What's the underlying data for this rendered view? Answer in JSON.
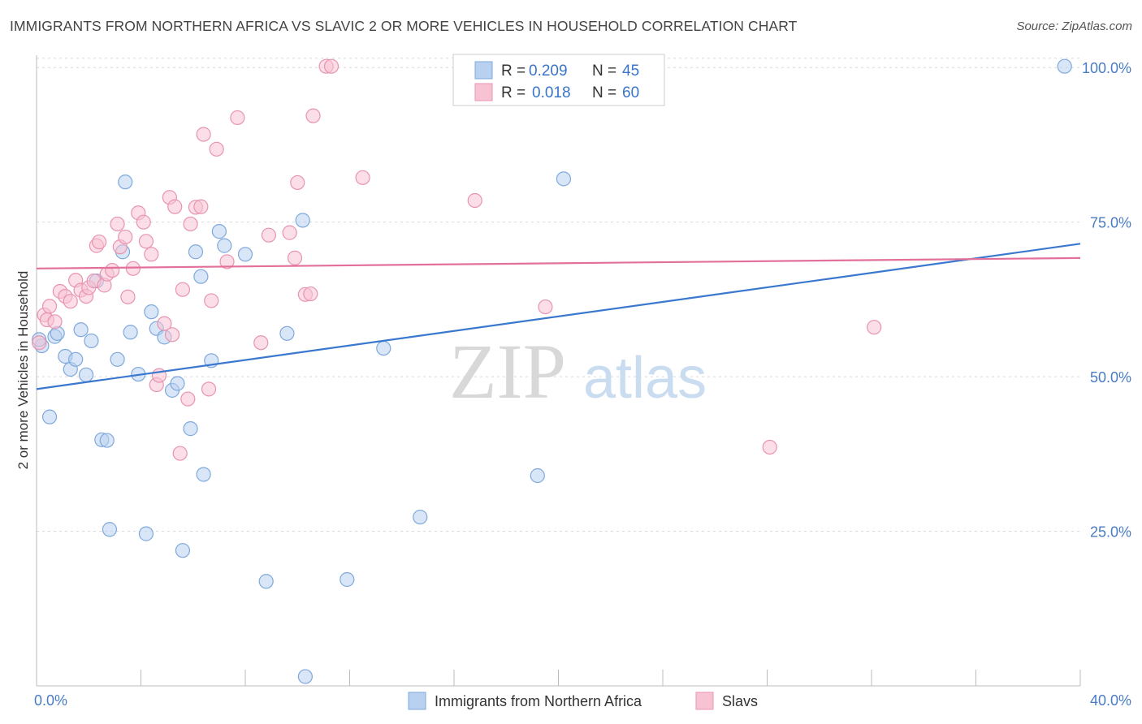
{
  "title": "IMMIGRANTS FROM NORTHERN AFRICA VS SLAVIC 2 OR MORE VEHICLES IN HOUSEHOLD CORRELATION CHART",
  "source": "Source: ZipAtlas.com",
  "watermark": {
    "part1": "ZIP",
    "part2": "atlas"
  },
  "legend_top": [
    {
      "r_label": "R =",
      "r_value": "0.209",
      "n_label": "N =",
      "n_value": "45"
    },
    {
      "r_label": "R =",
      "r_value": "0.018",
      "n_label": "N =",
      "n_value": "60"
    }
  ],
  "colors": {
    "blue_fill": "#b9d1f1",
    "blue_stroke": "#7fa8dc",
    "blue_line": "#3a78cf",
    "pink_fill": "#f7c3d3",
    "pink_stroke": "#e894b0",
    "pink_line": "#e2709a",
    "grid": "#d9d9d9",
    "axis": "#bbbbbb"
  },
  "chart_data": {
    "type": "scatter",
    "title": "IMMIGRANTS FROM NORTHERN AFRICA VS SLAVIC 2 OR MORE VEHICLES IN HOUSEHOLD CORRELATION CHART",
    "xlabel": "",
    "ylabel": "2 or more Vehicles in Household",
    "xlim": [
      0,
      40
    ],
    "ylim": [
      0,
      102
    ],
    "x_tick_labels": [
      "0.0%",
      "40.0%"
    ],
    "y_ticks": [
      25,
      50,
      75,
      100
    ],
    "y_tick_labels": [
      "25.0%",
      "50.0%",
      "75.0%",
      "100.0%"
    ],
    "grid": true,
    "legend_placement": "bottom",
    "series": [
      {
        "name": "Immigrants from Northern Africa",
        "color": "#b9d1f1",
        "trend": [
          [
            0,
            48.0
          ],
          [
            40,
            71.5
          ]
        ],
        "points": [
          [
            0.2,
            55.0
          ],
          [
            0.5,
            43.5
          ],
          [
            0.7,
            56.5
          ],
          [
            0.8,
            57.0
          ],
          [
            1.1,
            53.3
          ],
          [
            1.3,
            51.2
          ],
          [
            1.5,
            52.8
          ],
          [
            1.7,
            57.6
          ],
          [
            1.9,
            50.3
          ],
          [
            2.1,
            55.8
          ],
          [
            2.3,
            65.5
          ],
          [
            2.5,
            39.8
          ],
          [
            2.7,
            39.7
          ],
          [
            2.8,
            25.3
          ],
          [
            3.1,
            52.8
          ],
          [
            3.4,
            81.5
          ],
          [
            3.3,
            70.2
          ],
          [
            3.6,
            57.2
          ],
          [
            3.9,
            50.4
          ],
          [
            4.2,
            24.6
          ],
          [
            4.4,
            60.5
          ],
          [
            4.6,
            57.8
          ],
          [
            4.9,
            56.4
          ],
          [
            5.2,
            47.8
          ],
          [
            5.4,
            48.9
          ],
          [
            5.6,
            21.9
          ],
          [
            5.9,
            41.6
          ],
          [
            6.1,
            70.2
          ],
          [
            6.3,
            66.2
          ],
          [
            6.4,
            34.2
          ],
          [
            6.7,
            52.6
          ],
          [
            7.0,
            73.5
          ],
          [
            7.2,
            71.2
          ],
          [
            8.0,
            69.8
          ],
          [
            8.8,
            16.9
          ],
          [
            9.6,
            57.0
          ],
          [
            10.2,
            75.3
          ],
          [
            10.3,
            1.5
          ],
          [
            11.9,
            17.2
          ],
          [
            13.3,
            54.6
          ],
          [
            14.7,
            27.3
          ],
          [
            19.2,
            34.0
          ],
          [
            20.2,
            82.0
          ],
          [
            39.4,
            100.2
          ],
          [
            0.1,
            56.0
          ]
        ]
      },
      {
        "name": "Slavs",
        "color": "#f7c3d3",
        "trend": [
          [
            0,
            67.5
          ],
          [
            40,
            69.2
          ]
        ],
        "points": [
          [
            0.1,
            55.5
          ],
          [
            0.3,
            60.0
          ],
          [
            0.4,
            59.2
          ],
          [
            0.5,
            61.4
          ],
          [
            0.7,
            58.9
          ],
          [
            0.9,
            63.8
          ],
          [
            1.1,
            63.0
          ],
          [
            1.3,
            62.2
          ],
          [
            1.5,
            65.6
          ],
          [
            1.7,
            64.0
          ],
          [
            1.9,
            63.0
          ],
          [
            2.0,
            64.4
          ],
          [
            2.2,
            65.5
          ],
          [
            2.3,
            71.2
          ],
          [
            2.4,
            71.8
          ],
          [
            2.6,
            64.8
          ],
          [
            2.7,
            66.6
          ],
          [
            2.9,
            67.2
          ],
          [
            3.1,
            74.7
          ],
          [
            3.2,
            71.0
          ],
          [
            3.4,
            72.6
          ],
          [
            3.5,
            62.9
          ],
          [
            3.7,
            67.5
          ],
          [
            3.9,
            76.5
          ],
          [
            4.1,
            75.0
          ],
          [
            4.2,
            71.9
          ],
          [
            4.4,
            69.8
          ],
          [
            4.6,
            48.7
          ],
          [
            4.7,
            50.2
          ],
          [
            4.9,
            58.6
          ],
          [
            5.1,
            79.0
          ],
          [
            5.2,
            56.8
          ],
          [
            5.3,
            77.5
          ],
          [
            5.5,
            37.6
          ],
          [
            5.6,
            64.1
          ],
          [
            5.8,
            46.4
          ],
          [
            5.9,
            74.7
          ],
          [
            6.1,
            77.4
          ],
          [
            6.3,
            77.5
          ],
          [
            6.4,
            89.2
          ],
          [
            6.6,
            48.0
          ],
          [
            6.7,
            62.3
          ],
          [
            6.9,
            86.8
          ],
          [
            7.3,
            68.6
          ],
          [
            7.7,
            91.9
          ],
          [
            8.6,
            55.5
          ],
          [
            8.9,
            72.9
          ],
          [
            9.7,
            73.3
          ],
          [
            9.9,
            69.2
          ],
          [
            10.0,
            81.4
          ],
          [
            10.3,
            63.3
          ],
          [
            10.5,
            63.4
          ],
          [
            10.6,
            92.2
          ],
          [
            11.1,
            100.2
          ],
          [
            11.3,
            100.2
          ],
          [
            12.5,
            82.2
          ],
          [
            16.8,
            78.5
          ],
          [
            19.5,
            61.3
          ],
          [
            28.1,
            38.6
          ],
          [
            32.1,
            58.0
          ]
        ]
      }
    ]
  }
}
